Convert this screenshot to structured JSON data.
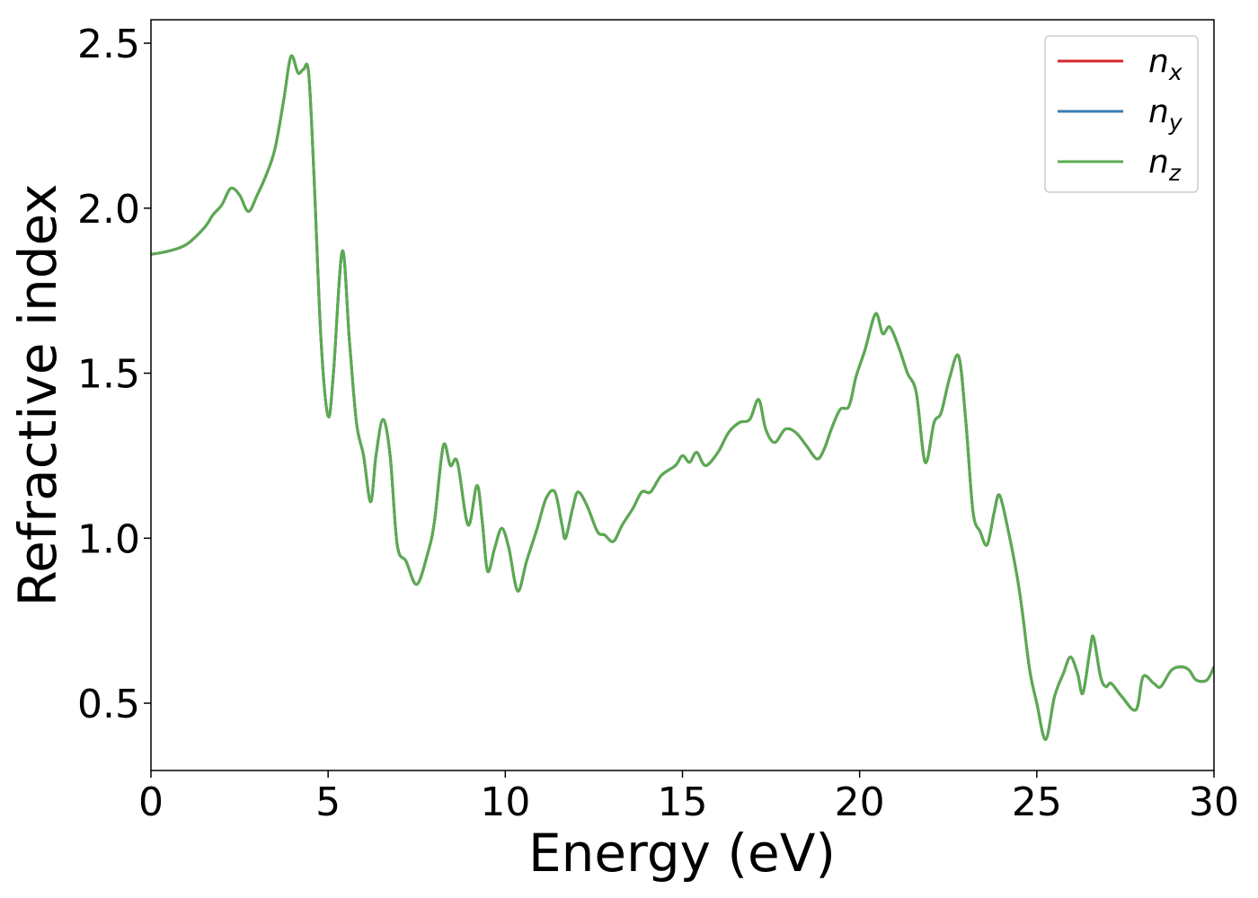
{
  "chart_data": {
    "type": "line",
    "xlabel": "Energy (eV)",
    "ylabel": "Refractive index",
    "xlim": [
      0,
      30
    ],
    "xticks": [
      0,
      5,
      10,
      15,
      20,
      25,
      30
    ],
    "ylim": [
      0.296,
      2.571
    ],
    "yticks": [
      0.5,
      {
        "value": 1.0,
        "label": "1.0"
      },
      1.5,
      {
        "value": 2.0,
        "label": "2.0"
      },
      2.5
    ],
    "legend": "upper right",
    "x": [
      0,
      0.5,
      1.0,
      1.5,
      1.75,
      2.0,
      2.25,
      2.5,
      2.75,
      3.0,
      3.25,
      3.5,
      3.75,
      3.95,
      4.15,
      4.3,
      4.45,
      4.6,
      4.8,
      5.0,
      5.15,
      5.4,
      5.6,
      5.8,
      6.0,
      6.2,
      6.35,
      6.55,
      6.75,
      6.95,
      7.2,
      7.5,
      7.8,
      8.0,
      8.25,
      8.45,
      8.65,
      8.95,
      9.2,
      9.35,
      9.5,
      9.7,
      9.9,
      10.1,
      10.35,
      10.6,
      10.9,
      11.15,
      11.4,
      11.6,
      11.7,
      11.9,
      12.05,
      12.3,
      12.6,
      12.8,
      13.05,
      13.3,
      13.6,
      13.85,
      14.1,
      14.4,
      14.8,
      15.0,
      15.2,
      15.4,
      15.65,
      16.0,
      16.3,
      16.6,
      16.9,
      17.15,
      17.35,
      17.6,
      17.9,
      18.2,
      18.5,
      18.8,
      19.0,
      19.2,
      19.45,
      19.7,
      19.9,
      20.15,
      20.45,
      20.65,
      20.85,
      21.1,
      21.35,
      21.6,
      21.85,
      22.1,
      22.3,
      22.55,
      22.8,
      23.0,
      23.2,
      23.4,
      23.6,
      23.8,
      23.95,
      24.2,
      24.45,
      24.6,
      24.8,
      25.0,
      25.25,
      25.5,
      25.75,
      25.95,
      26.15,
      26.3,
      26.5,
      26.6,
      26.8,
      26.95,
      27.1,
      27.4,
      27.8,
      28.0,
      28.3,
      28.5,
      28.8,
      29.1,
      29.3,
      29.5,
      29.8,
      30.0
    ],
    "series": [
      {
        "name": "nx",
        "color": "#d62728",
        "values": [
          1.86,
          1.87,
          1.89,
          1.94,
          1.98,
          2.01,
          2.06,
          2.04,
          1.99,
          2.04,
          2.1,
          2.18,
          2.33,
          2.46,
          2.41,
          2.42,
          2.41,
          2.1,
          1.6,
          1.37,
          1.5,
          1.87,
          1.6,
          1.35,
          1.25,
          1.11,
          1.25,
          1.36,
          1.25,
          0.98,
          0.93,
          0.86,
          0.95,
          1.05,
          1.28,
          1.22,
          1.23,
          1.04,
          1.16,
          1.05,
          0.9,
          0.97,
          1.03,
          0.97,
          0.84,
          0.93,
          1.03,
          1.12,
          1.14,
          1.04,
          1.0,
          1.09,
          1.14,
          1.1,
          1.02,
          1.01,
          0.99,
          1.04,
          1.09,
          1.14,
          1.14,
          1.19,
          1.22,
          1.25,
          1.23,
          1.26,
          1.22,
          1.26,
          1.32,
          1.35,
          1.36,
          1.42,
          1.33,
          1.29,
          1.33,
          1.32,
          1.28,
          1.24,
          1.27,
          1.33,
          1.39,
          1.4,
          1.49,
          1.57,
          1.68,
          1.62,
          1.64,
          1.58,
          1.5,
          1.44,
          1.23,
          1.35,
          1.38,
          1.49,
          1.55,
          1.35,
          1.08,
          1.02,
          0.98,
          1.08,
          1.13,
          1.02,
          0.88,
          0.77,
          0.6,
          0.5,
          0.39,
          0.52,
          0.59,
          0.64,
          0.59,
          0.53,
          0.66,
          0.7,
          0.58,
          0.55,
          0.56,
          0.52,
          0.48,
          0.58,
          0.56,
          0.55,
          0.6,
          0.61,
          0.6,
          0.57,
          0.57,
          0.61
        ]
      },
      {
        "name": "ny",
        "color": "#3b7db2",
        "values": [
          1.86,
          1.87,
          1.89,
          1.94,
          1.98,
          2.01,
          2.06,
          2.04,
          1.99,
          2.04,
          2.1,
          2.18,
          2.33,
          2.46,
          2.41,
          2.42,
          2.41,
          2.1,
          1.6,
          1.37,
          1.5,
          1.87,
          1.6,
          1.35,
          1.25,
          1.11,
          1.25,
          1.36,
          1.25,
          0.98,
          0.93,
          0.86,
          0.95,
          1.05,
          1.28,
          1.22,
          1.23,
          1.04,
          1.16,
          1.05,
          0.9,
          0.97,
          1.03,
          0.97,
          0.84,
          0.93,
          1.03,
          1.12,
          1.14,
          1.04,
          1.0,
          1.09,
          1.14,
          1.1,
          1.02,
          1.01,
          0.99,
          1.04,
          1.09,
          1.14,
          1.14,
          1.19,
          1.22,
          1.25,
          1.23,
          1.26,
          1.22,
          1.26,
          1.32,
          1.35,
          1.36,
          1.42,
          1.33,
          1.29,
          1.33,
          1.32,
          1.28,
          1.24,
          1.27,
          1.33,
          1.39,
          1.4,
          1.49,
          1.57,
          1.68,
          1.62,
          1.64,
          1.58,
          1.5,
          1.44,
          1.23,
          1.35,
          1.38,
          1.49,
          1.55,
          1.35,
          1.08,
          1.02,
          0.98,
          1.08,
          1.13,
          1.02,
          0.88,
          0.77,
          0.6,
          0.5,
          0.39,
          0.52,
          0.59,
          0.64,
          0.59,
          0.53,
          0.66,
          0.7,
          0.58,
          0.55,
          0.56,
          0.52,
          0.48,
          0.58,
          0.56,
          0.55,
          0.6,
          0.61,
          0.6,
          0.57,
          0.57,
          0.61
        ]
      },
      {
        "name": "nz",
        "color": "#5aab4f",
        "values": [
          1.86,
          1.87,
          1.89,
          1.94,
          1.98,
          2.01,
          2.06,
          2.04,
          1.99,
          2.04,
          2.1,
          2.18,
          2.33,
          2.46,
          2.41,
          2.42,
          2.41,
          2.1,
          1.6,
          1.37,
          1.5,
          1.87,
          1.6,
          1.35,
          1.25,
          1.11,
          1.25,
          1.36,
          1.25,
          0.98,
          0.93,
          0.86,
          0.95,
          1.05,
          1.28,
          1.22,
          1.23,
          1.04,
          1.16,
          1.05,
          0.9,
          0.97,
          1.03,
          0.97,
          0.84,
          0.93,
          1.03,
          1.12,
          1.14,
          1.04,
          1.0,
          1.09,
          1.14,
          1.1,
          1.02,
          1.01,
          0.99,
          1.04,
          1.09,
          1.14,
          1.14,
          1.19,
          1.22,
          1.25,
          1.23,
          1.26,
          1.22,
          1.26,
          1.32,
          1.35,
          1.36,
          1.42,
          1.33,
          1.29,
          1.33,
          1.32,
          1.28,
          1.24,
          1.27,
          1.33,
          1.39,
          1.4,
          1.49,
          1.57,
          1.68,
          1.62,
          1.64,
          1.58,
          1.5,
          1.44,
          1.23,
          1.35,
          1.38,
          1.49,
          1.55,
          1.35,
          1.08,
          1.02,
          0.98,
          1.08,
          1.13,
          1.02,
          0.88,
          0.77,
          0.6,
          0.5,
          0.39,
          0.52,
          0.59,
          0.64,
          0.59,
          0.53,
          0.66,
          0.7,
          0.58,
          0.55,
          0.56,
          0.52,
          0.48,
          0.58,
          0.56,
          0.55,
          0.6,
          0.61,
          0.6,
          0.57,
          0.57,
          0.61
        ]
      }
    ]
  }
}
